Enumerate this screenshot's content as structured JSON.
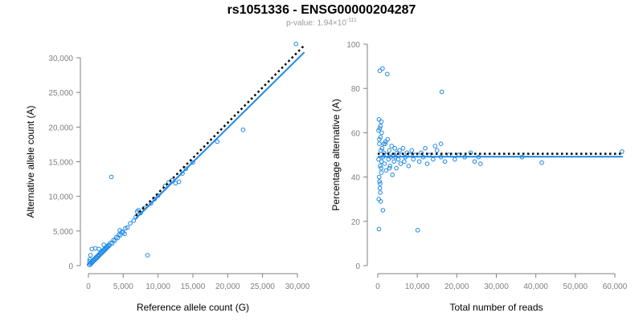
{
  "title": "rs1051336 - ENSG00000204287",
  "subtitle": {
    "prefix": "p-value: 1.94×10",
    "exponent": "-111"
  },
  "colors": {
    "points": "#1e88e5",
    "fit": "#1e88e5",
    "reference": "#000000",
    "axis": "#808080"
  },
  "chart_data": [
    {
      "type": "scatter",
      "xlabel": "Reference allele count (G)",
      "ylabel": "Alternative allele count (A)",
      "xlim": [
        -1000,
        32000
      ],
      "ylim": [
        -1000,
        32000
      ],
      "xticks": [
        0,
        5000,
        10000,
        15000,
        20000,
        25000,
        30000
      ],
      "xtick_labels": [
        "0",
        "5,000",
        "10,000",
        "15,000",
        "20,000",
        "25,000",
        "30,000"
      ],
      "yticks": [
        0,
        5000,
        10000,
        15000,
        20000,
        25000,
        30000
      ],
      "ytick_labels": [
        "0",
        "5,000",
        "10,000",
        "15,000",
        "20,000",
        "25,000",
        "30,000"
      ],
      "grid": false,
      "reference_line": {
        "style": "dotted",
        "x": [
          6800,
          31000
        ],
        "y": [
          7200,
          31800
        ]
      },
      "fit_line": {
        "style": "solid",
        "x": [
          6800,
          31000
        ],
        "y": [
          6800,
          30800
        ]
      },
      "points": [
        [
          100,
          150
        ],
        [
          200,
          120
        ],
        [
          300,
          350
        ],
        [
          400,
          300
        ],
        [
          500,
          600
        ],
        [
          600,
          500
        ],
        [
          700,
          800
        ],
        [
          800,
          700
        ],
        [
          900,
          1000
        ],
        [
          1000,
          900
        ],
        [
          1100,
          1200
        ],
        [
          1200,
          1100
        ],
        [
          1300,
          1400
        ],
        [
          1400,
          1300
        ],
        [
          1500,
          1600
        ],
        [
          1600,
          1500
        ],
        [
          1700,
          1800
        ],
        [
          1800,
          1700
        ],
        [
          1900,
          2000
        ],
        [
          2000,
          1900
        ],
        [
          2100,
          2200
        ],
        [
          2200,
          2100
        ],
        [
          2300,
          2400
        ],
        [
          2400,
          2300
        ],
        [
          2500,
          2600
        ],
        [
          2600,
          2500
        ],
        [
          2700,
          2800
        ],
        [
          2800,
          2700
        ],
        [
          2900,
          3000
        ],
        [
          3000,
          2900
        ],
        [
          3200,
          3300
        ],
        [
          3400,
          3200
        ],
        [
          3600,
          3700
        ],
        [
          3800,
          3600
        ],
        [
          4000,
          4100
        ],
        [
          4200,
          4000
        ],
        [
          4400,
          4500
        ],
        [
          4600,
          4400
        ],
        [
          4800,
          4900
        ],
        [
          5000,
          4800
        ],
        [
          5300,
          5400
        ],
        [
          5600,
          5500
        ],
        [
          6000,
          6100
        ],
        [
          6500,
          6500
        ],
        [
          6800,
          7000
        ],
        [
          7000,
          7800
        ],
        [
          7200,
          8000
        ],
        [
          7500,
          7600
        ],
        [
          8000,
          8300
        ],
        [
          9000,
          9000
        ],
        [
          9500,
          9600
        ],
        [
          10000,
          10100
        ],
        [
          11000,
          11500
        ],
        [
          11500,
          12000
        ],
        [
          12000,
          12300
        ],
        [
          12500,
          11900
        ],
        [
          13000,
          12100
        ],
        [
          13500,
          13300
        ],
        [
          14000,
          14000
        ],
        [
          15000,
          14900
        ],
        [
          18500,
          17900
        ],
        [
          22200,
          19600
        ],
        [
          29800,
          32000
        ],
        [
          3300,
          12800
        ],
        [
          8500,
          1500
        ],
        [
          300,
          1500
        ],
        [
          500,
          2400
        ],
        [
          200,
          900
        ],
        [
          150,
          600
        ],
        [
          1000,
          2500
        ],
        [
          4500,
          5100
        ],
        [
          5200,
          4600
        ],
        [
          2200,
          3000
        ],
        [
          1500,
          2400
        ]
      ]
    },
    {
      "type": "scatter",
      "xlabel": "Total number of reads",
      "ylabel": "Percentage alternative (A)",
      "xlim": [
        -1500,
        63000
      ],
      "ylim": [
        -2,
        101
      ],
      "xticks": [
        0,
        10000,
        20000,
        30000,
        40000,
        50000,
        60000
      ],
      "xtick_labels": [
        "0",
        "10,000",
        "20,000",
        "30,000",
        "40,000",
        "50,000",
        "60,000"
      ],
      "yticks": [
        0,
        20,
        40,
        60,
        80,
        100
      ],
      "ytick_labels": [
        "0",
        "20",
        "40",
        "60",
        "80",
        "100"
      ],
      "grid": false,
      "reference_line": {
        "style": "dotted",
        "x": [
          0,
          62000
        ],
        "y": [
          50.5,
          50.5
        ]
      },
      "fit_line": {
        "style": "solid",
        "x": [
          0,
          62000
        ],
        "y": [
          49.2,
          49.2
        ]
      },
      "points": [
        [
          300,
          66
        ],
        [
          500,
          62
        ],
        [
          700,
          58
        ],
        [
          400,
          55
        ],
        [
          800,
          52
        ],
        [
          200,
          48
        ],
        [
          600,
          45
        ],
        [
          900,
          42
        ],
        [
          350,
          40
        ],
        [
          450,
          38
        ],
        [
          550,
          35
        ],
        [
          650,
          33
        ],
        [
          250,
          30
        ],
        [
          750,
          29
        ],
        [
          850,
          44
        ],
        [
          950,
          47
        ],
        [
          1100,
          53
        ],
        [
          1300,
          49
        ],
        [
          1500,
          51
        ],
        [
          1700,
          46
        ],
        [
          1900,
          55
        ],
        [
          2100,
          43
        ],
        [
          2300,
          50
        ],
        [
          2500,
          57
        ],
        [
          2700,
          48
        ],
        [
          2900,
          52
        ],
        [
          3100,
          45
        ],
        [
          3300,
          49
        ],
        [
          3500,
          54
        ],
        [
          3700,
          41
        ],
        [
          3900,
          50
        ],
        [
          4100,
          47
        ],
        [
          4300,
          53
        ],
        [
          4500,
          49
        ],
        [
          4700,
          44
        ],
        [
          4900,
          51
        ],
        [
          5200,
          48
        ],
        [
          5500,
          52
        ],
        [
          5800,
          46
        ],
        [
          6100,
          50
        ],
        [
          6400,
          53
        ],
        [
          6700,
          47
        ],
        [
          7000,
          49
        ],
        [
          7400,
          51
        ],
        [
          7800,
          45
        ],
        [
          8200,
          50
        ],
        [
          8600,
          52
        ],
        [
          9000,
          48
        ],
        [
          9500,
          50
        ],
        [
          10500,
          47
        ],
        [
          11000,
          51
        ],
        [
          11500,
          49
        ],
        [
          12000,
          53
        ],
        [
          12500,
          46
        ],
        [
          13000,
          50
        ],
        [
          14000,
          48
        ],
        [
          15000,
          52
        ],
        [
          16000,
          49
        ],
        [
          17000,
          47
        ],
        [
          18000,
          50
        ],
        [
          19500,
          48
        ],
        [
          20500,
          50
        ],
        [
          22000,
          49
        ],
        [
          23500,
          51
        ],
        [
          24500,
          47
        ],
        [
          25500,
          49
        ],
        [
          26000,
          46
        ],
        [
          36500,
          49
        ],
        [
          41500,
          46.5
        ],
        [
          61800,
          51.5
        ],
        [
          500,
          88
        ],
        [
          1200,
          89
        ],
        [
          2400,
          86.5
        ],
        [
          16200,
          78.5
        ],
        [
          1300,
          25
        ],
        [
          10100,
          16
        ],
        [
          300,
          16.5
        ],
        [
          700,
          63
        ],
        [
          1000,
          60
        ],
        [
          400,
          57
        ],
        [
          600,
          37
        ],
        [
          1500,
          55
        ],
        [
          2000,
          56
        ],
        [
          3000,
          44
        ],
        [
          14500,
          54
        ],
        [
          16000,
          55
        ],
        [
          900,
          65
        ],
        [
          200,
          61
        ]
      ]
    }
  ]
}
